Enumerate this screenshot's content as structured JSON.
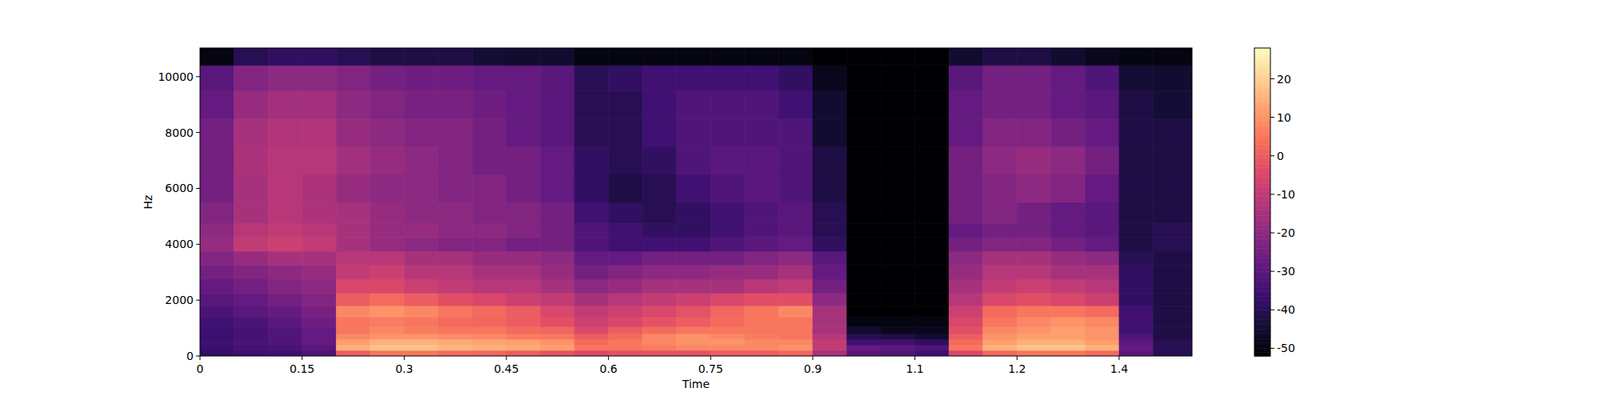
{
  "chart_data": {
    "type": "heatmap",
    "x_label": "Time",
    "y_label": "Hz",
    "xlim": [
      0,
      1.457
    ],
    "ylim": [
      0,
      11025
    ],
    "xticks": [
      0,
      0.15,
      0.3,
      0.45,
      0.6,
      0.75,
      0.9,
      {
        "value": 1.05,
        "label": "1.1"
      },
      1.2,
      {
        "value": 1.35,
        "label": "1.4"
      }
    ],
    "yticks": [
      0,
      2000,
      4000,
      6000,
      8000,
      10000
    ],
    "x": [
      0.025,
      0.075,
      0.125,
      0.175,
      0.225,
      0.275,
      0.325,
      0.375,
      0.425,
      0.475,
      0.525,
      0.575,
      0.625,
      0.675,
      0.725,
      0.775,
      0.825,
      0.875,
      0.925,
      0.975,
      1.025,
      1.075,
      1.125,
      1.175,
      1.225,
      1.275,
      1.325,
      1.375,
      1.425
    ],
    "y": [
      100,
      300,
      500,
      700,
      900,
      1200,
      1600,
      2000,
      2500,
      3000,
      3500,
      4000,
      4500,
      5000,
      6000,
      7000,
      8000,
      9000,
      10000,
      10800
    ],
    "z": [
      [
        -38,
        -36,
        -35,
        -32,
        0,
        5,
        5,
        3,
        2,
        0,
        -2,
        -5,
        -3,
        -2,
        -2,
        0,
        0,
        2,
        -15,
        -30,
        -32,
        -35,
        -5,
        2,
        5,
        5,
        3,
        -30,
        -40
      ],
      [
        -36,
        -34,
        -33,
        -30,
        15,
        18,
        18,
        16,
        15,
        14,
        12,
        5,
        5,
        6,
        8,
        8,
        8,
        10,
        -10,
        -28,
        -30,
        -32,
        5,
        15,
        18,
        18,
        15,
        -28,
        -40
      ],
      [
        -35,
        -33,
        -32,
        -28,
        12,
        15,
        15,
        14,
        13,
        12,
        10,
        3,
        5,
        8,
        10,
        10,
        8,
        8,
        -10,
        -35,
        -35,
        -38,
        3,
        12,
        15,
        15,
        12,
        -30,
        -40
      ],
      [
        -36,
        -34,
        -32,
        -28,
        8,
        10,
        10,
        9,
        8,
        6,
        5,
        0,
        3,
        8,
        10,
        8,
        6,
        5,
        -12,
        -40,
        -42,
        -45,
        0,
        10,
        12,
        12,
        10,
        -32,
        -42
      ],
      [
        -36,
        -34,
        -32,
        -28,
        5,
        8,
        6,
        5,
        5,
        3,
        2,
        -5,
        0,
        3,
        5,
        5,
        5,
        5,
        -15,
        -45,
        -48,
        -48,
        -3,
        8,
        10,
        12,
        10,
        -35,
        -42
      ],
      [
        -35,
        -33,
        -30,
        -26,
        5,
        6,
        5,
        3,
        2,
        0,
        -3,
        -8,
        -5,
        -2,
        0,
        3,
        5,
        5,
        -15,
        -50,
        -50,
        -50,
        -5,
        5,
        8,
        10,
        8,
        -35,
        -42
      ],
      [
        -33,
        -30,
        -28,
        -24,
        8,
        10,
        8,
        5,
        3,
        0,
        -5,
        -10,
        -8,
        -5,
        -2,
        2,
        5,
        8,
        -15,
        -52,
        -52,
        -52,
        -8,
        3,
        5,
        5,
        3,
        -35,
        -42
      ],
      [
        -30,
        -28,
        -25,
        -22,
        0,
        3,
        0,
        -3,
        -5,
        -8,
        -10,
        -15,
        -12,
        -10,
        -8,
        -5,
        -3,
        -3,
        -20,
        -52,
        -52,
        -52,
        -12,
        -5,
        -3,
        -5,
        -8,
        -38,
        -42
      ],
      [
        -28,
        -25,
        -22,
        -20,
        -5,
        -5,
        -8,
        -10,
        -12,
        -12,
        -15,
        -20,
        -18,
        -15,
        -15,
        -15,
        -12,
        -10,
        -25,
        -52,
        -52,
        -52,
        -15,
        -10,
        -8,
        -10,
        -12,
        -38,
        -42
      ],
      [
        -25,
        -22,
        -20,
        -18,
        -10,
        -8,
        -12,
        -12,
        -15,
        -15,
        -18,
        -25,
        -22,
        -20,
        -20,
        -18,
        -18,
        -15,
        -28,
        -52,
        -52,
        -52,
        -18,
        -12,
        -12,
        -15,
        -15,
        -38,
        -42
      ],
      [
        -22,
        -18,
        -15,
        -15,
        -12,
        -12,
        -15,
        -15,
        -18,
        -18,
        -20,
        -28,
        -28,
        -25,
        -25,
        -25,
        -22,
        -20,
        -30,
        -52,
        -52,
        -52,
        -20,
        -15,
        -15,
        -18,
        -20,
        -40,
        -42
      ],
      [
        -18,
        -10,
        -8,
        -10,
        -15,
        -18,
        -20,
        -22,
        -22,
        -25,
        -25,
        -32,
        -35,
        -35,
        -35,
        -32,
        -30,
        -28,
        -38,
        -52,
        -52,
        -52,
        -25,
        -22,
        -22,
        -25,
        -28,
        -42,
        -40
      ],
      [
        -20,
        -12,
        -10,
        -12,
        -15,
        -18,
        -18,
        -20,
        -20,
        -22,
        -25,
        -32,
        -35,
        -38,
        -38,
        -35,
        -32,
        -30,
        -40,
        -52,
        -52,
        -52,
        -28,
        -25,
        -25,
        -28,
        -30,
        -42,
        -40
      ],
      [
        -22,
        -15,
        -12,
        -14,
        -15,
        -18,
        -20,
        -20,
        -22,
        -22,
        -25,
        -35,
        -38,
        -40,
        -38,
        -35,
        -32,
        -30,
        -40,
        -52,
        -52,
        -52,
        -25,
        -22,
        -25,
        -28,
        -30,
        -42,
        -42
      ],
      [
        -25,
        -15,
        -12,
        -14,
        -18,
        -20,
        -20,
        -22,
        -22,
        -25,
        -28,
        -38,
        -42,
        -40,
        -35,
        -32,
        -30,
        -32,
        -42,
        -52,
        -52,
        -52,
        -25,
        -22,
        -20,
        -22,
        -28,
        -42,
        -42
      ],
      [
        -25,
        -14,
        -12,
        -12,
        -16,
        -18,
        -20,
        -22,
        -25,
        -25,
        -28,
        -38,
        -40,
        -38,
        -32,
        -30,
        -30,
        -32,
        -42,
        -52,
        -52,
        -52,
        -25,
        -20,
        -18,
        -20,
        -25,
        -42,
        -42
      ],
      [
        -25,
        -15,
        -13,
        -13,
        -18,
        -20,
        -22,
        -22,
        -25,
        -28,
        -30,
        -40,
        -40,
        -35,
        -32,
        -32,
        -32,
        -32,
        -45,
        -52,
        -52,
        -52,
        -28,
        -22,
        -22,
        -25,
        -28,
        -42,
        -42
      ],
      [
        -28,
        -18,
        -16,
        -16,
        -20,
        -22,
        -24,
        -24,
        -26,
        -28,
        -30,
        -40,
        -40,
        -35,
        -32,
        -32,
        -32,
        -35,
        -45,
        -52,
        -52,
        -52,
        -28,
        -25,
        -25,
        -28,
        -30,
        -42,
        -44
      ],
      [
        -30,
        -22,
        -20,
        -20,
        -22,
        -25,
        -26,
        -26,
        -28,
        -28,
        -30,
        -40,
        -38,
        -35,
        -35,
        -35,
        -35,
        -38,
        -48,
        -52,
        -52,
        -52,
        -30,
        -25,
        -25,
        -28,
        -32,
        -44,
        -45
      ],
      [
        -50,
        -40,
        -38,
        -38,
        -40,
        -42,
        -42,
        -42,
        -44,
        -45,
        -45,
        -50,
        -50,
        -50,
        -50,
        -50,
        -50,
        -50,
        -52,
        -52,
        -52,
        -52,
        -45,
        -42,
        -42,
        -45,
        -48,
        -50,
        -50
      ]
    ],
    "color_range": [
      -52,
      28
    ],
    "color_ticks": [
      -50,
      -40,
      -30,
      -20,
      -10,
      0,
      10,
      20
    ]
  }
}
